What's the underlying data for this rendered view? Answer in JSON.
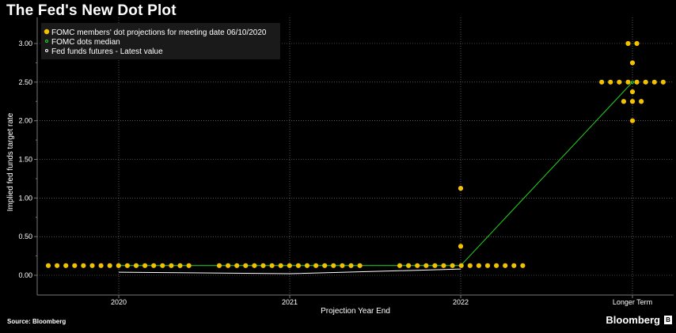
{
  "header": {
    "title": "The Fed's New Dot Plot"
  },
  "footer": {
    "source": "Source: Bloomberg",
    "brand": "Bloomberg",
    "brand_icon": "B"
  },
  "colors": {
    "dots": "#f2c200",
    "median": "#22dd22",
    "futures": "#ffffff",
    "grid": "#8a8a8a",
    "background": "#000000"
  },
  "chart_data": {
    "type": "scatter",
    "title": "The Fed's New Dot Plot",
    "xlabel": "Projection Year End",
    "ylabel": "Implied fed funds target rate",
    "ylim": [
      -0.25,
      3.25
    ],
    "yticks": [
      "0.00",
      "0.50",
      "1.00",
      "1.50",
      "2.00",
      "2.50",
      "3.00"
    ],
    "categories": [
      "2020",
      "2021",
      "2022",
      "Longer Term"
    ],
    "grid": true,
    "legend_position": "top-left",
    "series": [
      {
        "name": "FOMC members' dot projections for meeting date 06/10/2020",
        "points": [
          {
            "category": "2020",
            "values": [
              0.125,
              0.125,
              0.125,
              0.125,
              0.125,
              0.125,
              0.125,
              0.125,
              0.125,
              0.125,
              0.125,
              0.125,
              0.125,
              0.125,
              0.125,
              0.125,
              0.125
            ]
          },
          {
            "category": "2021",
            "values": [
              0.125,
              0.125,
              0.125,
              0.125,
              0.125,
              0.125,
              0.125,
              0.125,
              0.125,
              0.125,
              0.125,
              0.125,
              0.125,
              0.125,
              0.125,
              0.125,
              0.125
            ]
          },
          {
            "category": "2022",
            "values": [
              0.125,
              0.125,
              0.125,
              0.125,
              0.125,
              0.125,
              0.125,
              0.125,
              0.125,
              0.125,
              0.125,
              0.125,
              0.125,
              0.125,
              0.125,
              0.375,
              1.125
            ]
          },
          {
            "category": "Longer Term",
            "values": [
              2.0,
              2.25,
              2.25,
              2.25,
              2.375,
              2.5,
              2.5,
              2.5,
              2.5,
              2.5,
              2.5,
              2.5,
              2.5,
              2.75,
              3.0,
              3.0
            ]
          }
        ]
      },
      {
        "name": "FOMC dots median",
        "values": [
          0.125,
          0.125,
          0.125,
          2.5
        ]
      },
      {
        "name": "Fed funds futures - Latest value",
        "values": [
          0.04,
          0.02,
          0.08
        ]
      }
    ]
  }
}
